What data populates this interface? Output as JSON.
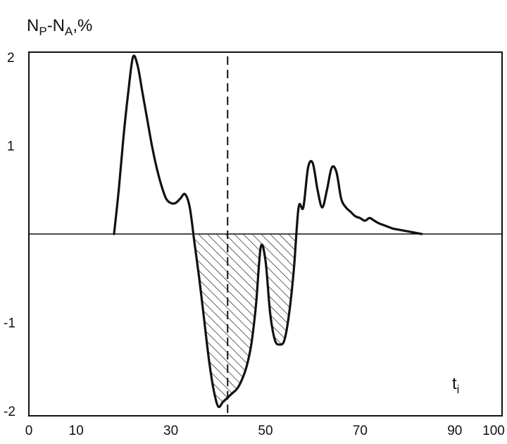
{
  "chart_data": {
    "type": "line",
    "title": "",
    "ylabel": {
      "main": "N",
      "sub1": "P",
      "mid": "-N",
      "sub2": "A",
      "suffix": ",%"
    },
    "xlabel": {
      "main": "t",
      "sub": "i"
    },
    "xlim": [
      0,
      100
    ],
    "ylim": [
      -2,
      2
    ],
    "x_ticks": [
      0,
      10,
      30,
      50,
      70,
      90,
      100
    ],
    "y_ticks": [
      2,
      1,
      -1,
      -2
    ],
    "marker_x": 42,
    "grid": false,
    "legend": "none",
    "hatched_region": "area between the curve and zero where the curve is negative",
    "colors": {
      "line": "#111111",
      "hatch": "#222222"
    },
    "series": [
      {
        "x": [
          18,
          19,
          20,
          21,
          22,
          23,
          24,
          25,
          26,
          27,
          28,
          29,
          30,
          31,
          32,
          33,
          34,
          35,
          36,
          37,
          38,
          39,
          40,
          41,
          42,
          43,
          44,
          45,
          46,
          47,
          48,
          49,
          50,
          51,
          52,
          53,
          54,
          55,
          56,
          57,
          58,
          59,
          60,
          61,
          62,
          63,
          64,
          65,
          66,
          67,
          68,
          69,
          70,
          71,
          72,
          73,
          74,
          75,
          76,
          77,
          78,
          79,
          80,
          81,
          82,
          83
        ],
        "y": [
          0,
          0.5,
          1.1,
          1.6,
          2.0,
          1.9,
          1.6,
          1.3,
          1.0,
          0.75,
          0.55,
          0.4,
          0.35,
          0.35,
          0.4,
          0.45,
          0.3,
          -0.1,
          -0.5,
          -0.95,
          -1.4,
          -1.75,
          -1.95,
          -1.9,
          -1.85,
          -1.8,
          -1.75,
          -1.65,
          -1.5,
          -1.25,
          -0.8,
          -0.15,
          -0.3,
          -0.9,
          -1.2,
          -1.25,
          -1.2,
          -0.9,
          -0.4,
          0.3,
          0.3,
          0.75,
          0.8,
          0.5,
          0.3,
          0.5,
          0.75,
          0.7,
          0.4,
          0.3,
          0.25,
          0.2,
          0.18,
          0.15,
          0.18,
          0.15,
          0.12,
          0.1,
          0.08,
          0.06,
          0.05,
          0.04,
          0.03,
          0.02,
          0.01,
          0
        ]
      }
    ]
  }
}
